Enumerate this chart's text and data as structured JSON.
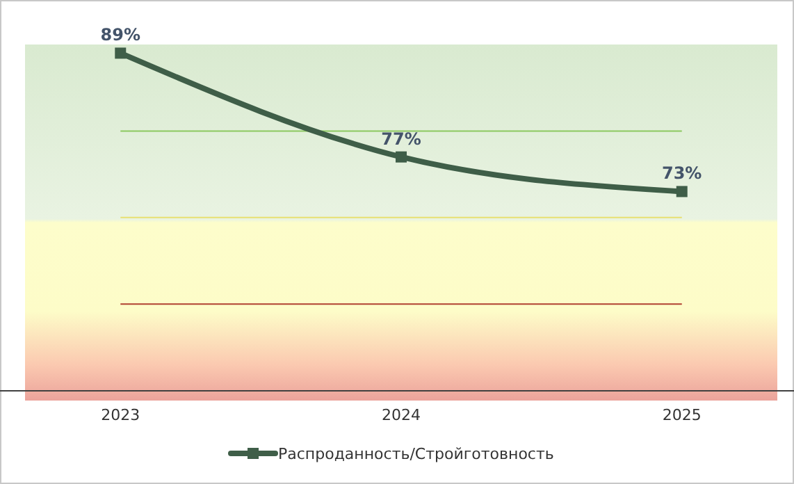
{
  "chart_data": {
    "type": "line",
    "categories": [
      "2023",
      "2024",
      "2025"
    ],
    "series": [
      {
        "name": "Распроданность/Стройготовность",
        "color": "#3f5e48",
        "values": [
          89,
          77,
          73
        ],
        "value_labels": [
          "89%",
          "77%",
          "73%"
        ]
      }
    ],
    "marker": "square",
    "line_style": "solid",
    "legend": "bottom",
    "tick_labels": "x",
    "ref_lines": [
      {
        "axis": "y",
        "value": 80,
        "color": "#8cc860"
      },
      {
        "axis": "y",
        "value": 70,
        "color": "#e8e070"
      },
      {
        "axis": "y",
        "value": 60,
        "color": "#b04030"
      }
    ]
  }
}
